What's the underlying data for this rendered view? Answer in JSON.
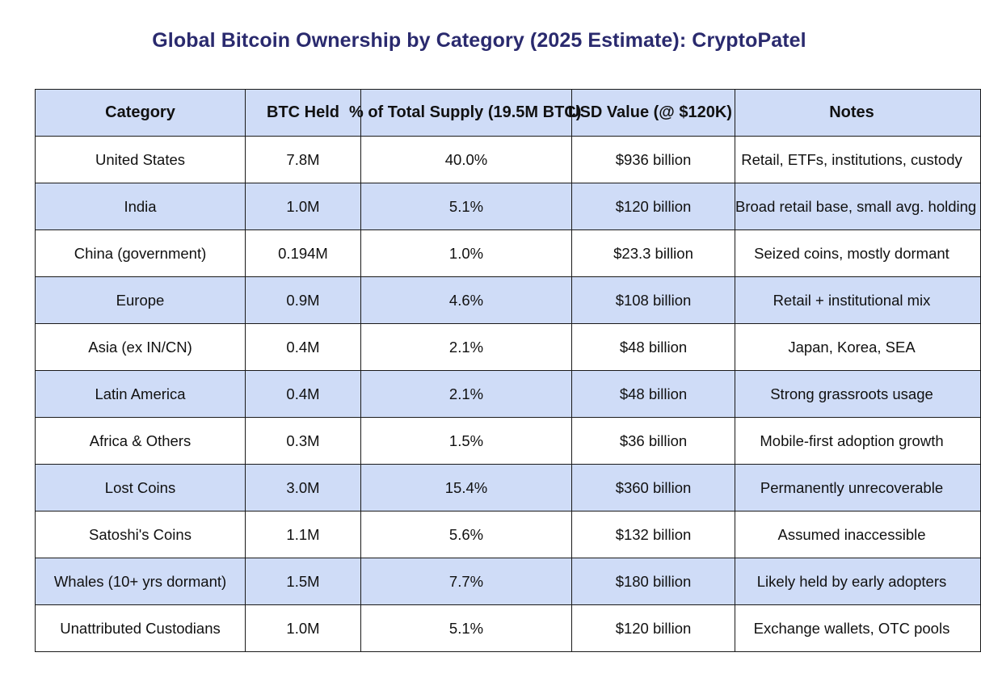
{
  "title": "Global Bitcoin Ownership by Category (2025 Estimate): CryptoPatel",
  "table": {
    "headers": {
      "category": "Category",
      "btc_held": "BTC Held",
      "pct_supply": "% of Total Supply (19.5M BTC)",
      "usd_value": "USD Value (@ $120K)",
      "notes": "Notes"
    },
    "rows": [
      {
        "category": "United States",
        "btc_held": "7.8M",
        "pct_supply": "40.0%",
        "usd_value": "$936 billion",
        "notes": "Retail, ETFs, institutions, custody"
      },
      {
        "category": "India",
        "btc_held": "1.0M",
        "pct_supply": "5.1%",
        "usd_value": "$120 billion",
        "notes": "Broad retail base, small avg. holding"
      },
      {
        "category": "China (government)",
        "btc_held": "0.194M",
        "pct_supply": "1.0%",
        "usd_value": "$23.3 billion",
        "notes": "Seized coins, mostly dormant"
      },
      {
        "category": "Europe",
        "btc_held": "0.9M",
        "pct_supply": "4.6%",
        "usd_value": "$108 billion",
        "notes": "Retail + institutional mix"
      },
      {
        "category": "Asia (ex IN/CN)",
        "btc_held": "0.4M",
        "pct_supply": "2.1%",
        "usd_value": "$48 billion",
        "notes": "Japan, Korea, SEA"
      },
      {
        "category": "Latin America",
        "btc_held": "0.4M",
        "pct_supply": "2.1%",
        "usd_value": "$48 billion",
        "notes": "Strong grassroots usage"
      },
      {
        "category": "Africa & Others",
        "btc_held": "0.3M",
        "pct_supply": "1.5%",
        "usd_value": "$36 billion",
        "notes": "Mobile-first adoption growth"
      },
      {
        "category": "Lost Coins",
        "btc_held": "3.0M",
        "pct_supply": "15.4%",
        "usd_value": "$360 billion",
        "notes": "Permanently unrecoverable"
      },
      {
        "category": "Satoshi's Coins",
        "btc_held": "1.1M",
        "pct_supply": "5.6%",
        "usd_value": "$132 billion",
        "notes": "Assumed inaccessible"
      },
      {
        "category": "Whales (10+ yrs dormant)",
        "btc_held": "1.5M",
        "pct_supply": "7.7%",
        "usd_value": "$180 billion",
        "notes": "Likely held by early adopters"
      },
      {
        "category": "Unattributed Custodians",
        "btc_held": "1.0M",
        "pct_supply": "5.1%",
        "usd_value": "$120 billion",
        "notes": "Exchange wallets, OTC pools"
      }
    ]
  },
  "colors": {
    "title": "#2a2a6e",
    "header_bg": "#cfdcf7",
    "stripe_bg": "#cfdcf7",
    "border": "#1a1a1a"
  }
}
